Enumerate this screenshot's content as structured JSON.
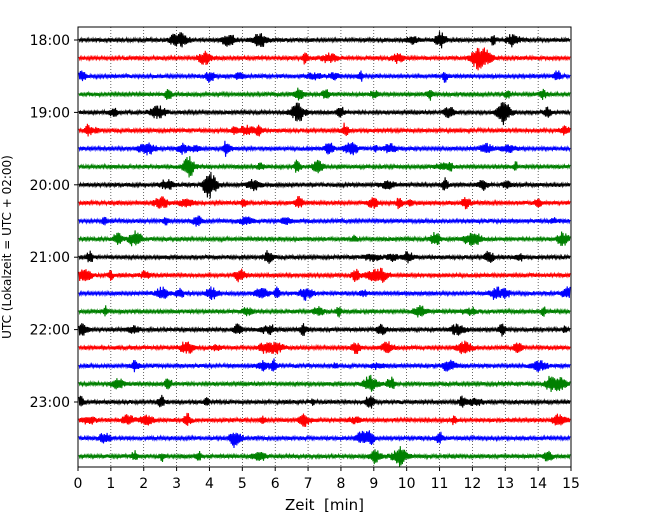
{
  "chart_data": {
    "type": "line",
    "subtype": "helicorder",
    "title": "",
    "xlabel": "Zeit  [min]",
    "ylabel": "UTC (Lokalzeit = UTC + 02:00)",
    "xlim": [
      0,
      15
    ],
    "x_ticks": [
      0,
      1,
      2,
      3,
      4,
      5,
      6,
      7,
      8,
      9,
      10,
      11,
      12,
      13,
      14,
      15
    ],
    "y_tick_labels": [
      "18:00",
      "19:00",
      "20:00",
      "21:00",
      "22:00",
      "23:00"
    ],
    "y_tick_rows": [
      0,
      4,
      8,
      12,
      16,
      20
    ],
    "grid": "vertical dotted lines at each minute",
    "color_cycle": [
      "#000000",
      "#ff0000",
      "#0000ff",
      "#008000"
    ],
    "rows": [
      {
        "start": "18:00",
        "color": "#000000"
      },
      {
        "start": "18:15",
        "color": "#ff0000"
      },
      {
        "start": "18:30",
        "color": "#0000ff"
      },
      {
        "start": "18:45",
        "color": "#008000"
      },
      {
        "start": "19:00",
        "color": "#000000"
      },
      {
        "start": "19:15",
        "color": "#ff0000"
      },
      {
        "start": "19:30",
        "color": "#0000ff"
      },
      {
        "start": "19:45",
        "color": "#008000"
      },
      {
        "start": "20:00",
        "color": "#000000"
      },
      {
        "start": "20:15",
        "color": "#ff0000"
      },
      {
        "start": "20:30",
        "color": "#0000ff"
      },
      {
        "start": "20:45",
        "color": "#008000"
      },
      {
        "start": "21:00",
        "color": "#000000"
      },
      {
        "start": "21:15",
        "color": "#ff0000"
      },
      {
        "start": "21:30",
        "color": "#0000ff"
      },
      {
        "start": "21:45",
        "color": "#008000"
      },
      {
        "start": "22:00",
        "color": "#000000"
      },
      {
        "start": "22:15",
        "color": "#ff0000"
      },
      {
        "start": "22:30",
        "color": "#0000ff"
      },
      {
        "start": "22:45",
        "color": "#008000"
      },
      {
        "start": "23:00",
        "color": "#000000"
      },
      {
        "start": "23:15",
        "color": "#ff0000"
      },
      {
        "start": "23:30",
        "color": "#0000ff"
      },
      {
        "start": "23:45",
        "color": "#008000"
      }
    ]
  }
}
